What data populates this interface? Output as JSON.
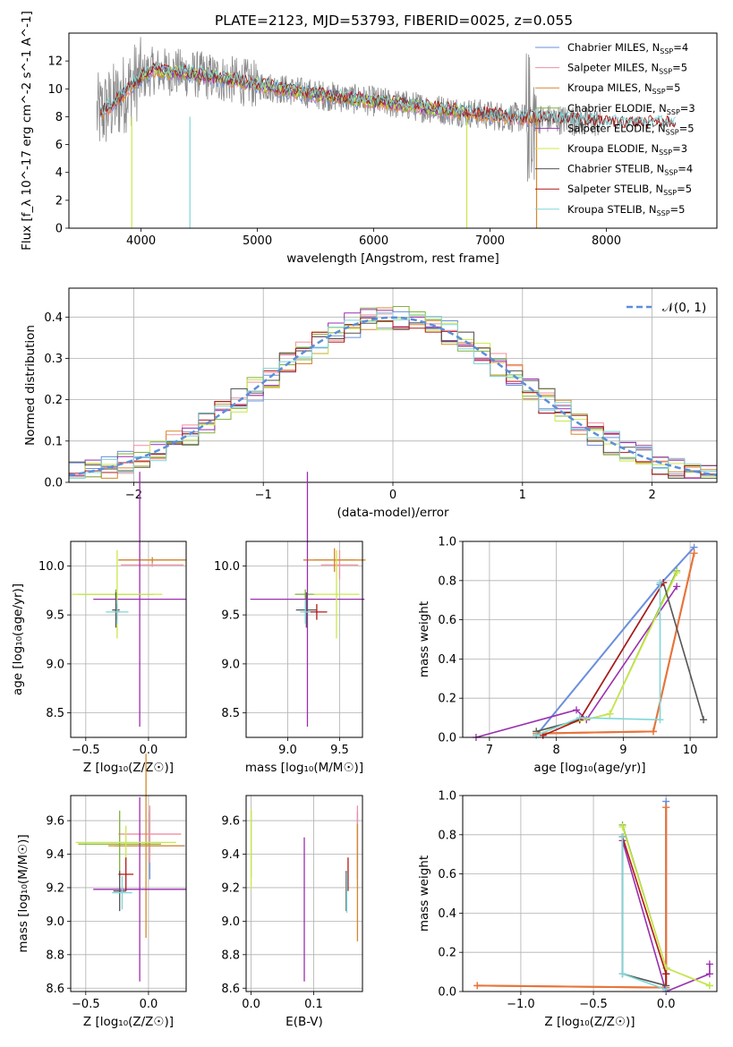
{
  "title": "PLATE=2123, MJD=53793, FIBERID=0025, z=0.055",
  "colors": {
    "chabrier_miles": "#6a8fdc",
    "salpeter_miles": "#f08fa0",
    "kroupa_miles": "#d7882a",
    "chabrier_elodie": "#7fb23a",
    "salpeter_elodie": "#9b2fb0",
    "kroupa_elodie": "#c9e84a",
    "chabrier_stelib": "#555555",
    "salpeter_stelib": "#b01818",
    "kroupa_stelib": "#7fd6d8",
    "data": "#888888",
    "normal": "#5b8fd8",
    "orange_thick": "#e8743b"
  },
  "chart_data": [
    {
      "type": "line",
      "xlabel": "wavelength [Angstrom, rest frame]",
      "ylabel": "Flux [f_λ 10^-17 erg cm^-2 s^-1 A^-1]",
      "xlim": [
        3380,
        8950
      ],
      "ylim": [
        0,
        14
      ],
      "xticks": [
        "4000",
        "5000",
        "6000",
        "7000",
        "8000"
      ],
      "yticks": [
        "0",
        "2",
        "4",
        "6",
        "8",
        "10",
        "12"
      ],
      "legend_position": "top-right",
      "continuum": {
        "x": [
          3650,
          3800,
          3950,
          4100,
          4300,
          4500,
          4800,
          5000,
          5200,
          5500,
          5800,
          6100,
          6400,
          6700,
          7000,
          7300,
          7600,
          7900,
          8100
        ],
        "y": [
          8.2,
          9.2,
          10.5,
          11.3,
          11.2,
          11.0,
          10.6,
          10.3,
          10.0,
          9.6,
          9.3,
          9.0,
          8.7,
          8.4,
          8.1,
          7.9,
          7.8,
          7.6,
          7.5
        ]
      },
      "legend": [
        {
          "label": "Chabrier MILES, N",
          "ssp": "4",
          "color_key": "chabrier_miles"
        },
        {
          "label": "Salpeter MILES, N",
          "ssp": "5",
          "color_key": "salpeter_miles"
        },
        {
          "label": "Kroupa MILES, N",
          "ssp": "5",
          "color_key": "kroupa_miles"
        },
        {
          "label": "Chabrier ELODIE, N",
          "ssp": "3",
          "color_key": "chabrier_elodie"
        },
        {
          "label": "Salpeter ELODIE, N",
          "ssp": "5",
          "color_key": "salpeter_elodie"
        },
        {
          "label": "Kroupa ELODIE, N",
          "ssp": "3",
          "color_key": "kroupa_elodie"
        },
        {
          "label": "Chabrier STELIB, N",
          "ssp": "4",
          "color_key": "chabrier_stelib"
        },
        {
          "label": "Salpeter STELIB, N",
          "ssp": "5",
          "color_key": "salpeter_stelib"
        },
        {
          "label": "Kroupa STELIB, N",
          "ssp": "5",
          "color_key": "kroupa_stelib"
        }
      ]
    },
    {
      "type": "histogram",
      "xlabel": "(data-model)/error",
      "ylabel": "Normed distribution",
      "xlim": [
        -2.5,
        2.5
      ],
      "ylim": [
        0,
        0.47
      ],
      "xticks": [
        "−2",
        "−1",
        "0",
        "1",
        "2"
      ],
      "yticks": [
        "0.0",
        "0.1",
        "0.2",
        "0.3",
        "0.4"
      ],
      "legend": [
        {
          "label": "𝒩(0, 1)",
          "style": "dashed",
          "color_key": "normal"
        }
      ]
    },
    {
      "type": "scatter",
      "xlabel": "Z [log₁₀(Z/Z☉)]",
      "ylabel": "age  [log₁₀(age/yr)]",
      "xlim": [
        -0.62,
        0.3
      ],
      "ylim": [
        8.25,
        10.25
      ],
      "xticks": [
        "−0.5",
        "0.0"
      ],
      "yticks": [
        "8.5",
        "9.0",
        "9.5",
        "10.0"
      ],
      "points": [
        {
          "x": 0.03,
          "y": 10.06,
          "xerr": 0.27,
          "yerr": 0.02,
          "color_key": "chabrier_miles"
        },
        {
          "x": 0.03,
          "y": 10.01,
          "xerr": 0.25,
          "yerr": 0.02,
          "color_key": "salpeter_miles"
        },
        {
          "x": 0.03,
          "y": 10.06,
          "xerr": 0.27,
          "yerr": 0.03,
          "color_key": "kroupa_miles"
        },
        {
          "x": -0.26,
          "y": 9.71,
          "xerr": 0.3,
          "yerr": 0.05,
          "color_key": "chabrier_elodie"
        },
        {
          "x": -0.07,
          "y": 9.66,
          "xerr": 0.37,
          "yerr": 1.3,
          "color_key": "salpeter_elodie"
        },
        {
          "x": -0.25,
          "y": 9.71,
          "xerr": 0.36,
          "yerr": 0.45,
          "color_key": "kroupa_elodie"
        },
        {
          "x": -0.26,
          "y": 9.55,
          "xerr": 0.03,
          "yerr": 0.18,
          "color_key": "chabrier_stelib"
        },
        {
          "x": -0.25,
          "y": 9.53,
          "xerr": 0.02,
          "yerr": 0.08,
          "color_key": "salpeter_stelib"
        },
        {
          "x": -0.25,
          "y": 9.53,
          "xerr": 0.09,
          "yerr": 0.12,
          "color_key": "kroupa_stelib"
        }
      ]
    },
    {
      "type": "scatter",
      "xlabel": "mass [log₁₀(M/M☉)]",
      "xlim": [
        8.6,
        9.72
      ],
      "ylim": [
        8.25,
        10.25
      ],
      "xticks": [
        "9.0",
        "9.5"
      ],
      "yticks": [
        "8.5",
        "9.0",
        "9.5",
        "10.0"
      ],
      "points": [
        {
          "x": 9.45,
          "y": 10.06,
          "xerr": 0.2,
          "yerr": 0.02,
          "color_key": "chabrier_miles"
        },
        {
          "x": 9.5,
          "y": 10.01,
          "xerr": 0.18,
          "yerr": 0.15,
          "color_key": "salpeter_miles"
        },
        {
          "x": 9.45,
          "y": 10.06,
          "xerr": 0.3,
          "yerr": 0.12,
          "color_key": "kroupa_miles"
        },
        {
          "x": 9.17,
          "y": 9.71,
          "xerr": 0.1,
          "yerr": 0.05,
          "color_key": "chabrier_elodie"
        },
        {
          "x": 9.19,
          "y": 9.66,
          "xerr": 0.55,
          "yerr": 1.3,
          "color_key": "salpeter_elodie"
        },
        {
          "x": 9.47,
          "y": 9.71,
          "xerr": 0.22,
          "yerr": 0.45,
          "color_key": "kroupa_elodie"
        },
        {
          "x": 9.18,
          "y": 9.55,
          "xerr": 0.1,
          "yerr": 0.18,
          "color_key": "chabrier_stelib"
        },
        {
          "x": 9.28,
          "y": 9.53,
          "xerr": 0.1,
          "yerr": 0.08,
          "color_key": "salpeter_stelib"
        },
        {
          "x": 9.17,
          "y": 9.53,
          "xerr": 0.05,
          "yerr": 0.12,
          "color_key": "kroupa_stelib"
        }
      ]
    },
    {
      "type": "line",
      "xlabel": "age  [log₁₀(age/yr)]",
      "ylabel": "mass weight",
      "xlim": [
        6.6,
        10.4
      ],
      "ylim": [
        0,
        1
      ],
      "xticks": [
        "7",
        "8",
        "9",
        "10"
      ],
      "yticks": [
        "0.0",
        "0.2",
        "0.4",
        "0.6",
        "0.8",
        "1.0"
      ],
      "series": [
        {
          "color_key": "chabrier_miles",
          "x": [
            7.7,
            9.55,
            10.06
          ],
          "y": [
            0.01,
            0.78,
            0.97
          ]
        },
        {
          "color_key": "kroupa_miles",
          "x": [
            7.7,
            9.45,
            10.06
          ],
          "y": [
            0.02,
            0.03,
            0.94
          ]
        },
        {
          "color_key": "salpeter_miles",
          "x": [
            7.7,
            9.45,
            10.06
          ],
          "y": [
            0.02,
            0.03,
            0.94
          ]
        },
        {
          "color_key": "chabrier_elodie",
          "x": [
            7.7,
            8.8,
            9.8
          ],
          "y": [
            0.03,
            0.12,
            0.85
          ]
        },
        {
          "color_key": "salpeter_elodie",
          "x": [
            6.8,
            8.3,
            8.45,
            9.8
          ],
          "y": [
            0.0,
            0.14,
            0.09,
            0.77
          ]
        },
        {
          "color_key": "kroupa_elodie",
          "x": [
            7.7,
            8.8,
            9.8
          ],
          "y": [
            0.03,
            0.12,
            0.84
          ]
        },
        {
          "color_key": "chabrier_stelib",
          "x": [
            7.7,
            8.35,
            9.6,
            10.2
          ],
          "y": [
            0.03,
            0.09,
            0.79,
            0.09
          ]
        },
        {
          "color_key": "salpeter_stelib",
          "x": [
            7.8,
            8.35,
            9.6
          ],
          "y": [
            0.01,
            0.09,
            0.79
          ]
        },
        {
          "color_key": "kroupa_stelib",
          "x": [
            7.7,
            8.35,
            9.55,
            9.55
          ],
          "y": [
            0.01,
            0.1,
            0.09,
            0.79
          ]
        }
      ]
    },
    {
      "type": "scatter",
      "xlabel": "Z [log₁₀(Z/Z☉)]",
      "ylabel": "mass [log₁₀(M/M☉)]",
      "xlim": [
        -0.62,
        0.3
      ],
      "ylim": [
        8.58,
        9.75
      ],
      "xticks": [
        "−0.5",
        "0.0"
      ],
      "yticks": [
        "8.6",
        "8.8",
        "9.0",
        "9.2",
        "9.4",
        "9.6"
      ],
      "points": [
        {
          "x": 0.01,
          "y": 9.45,
          "xerr": 0.28,
          "yerr": 0.2,
          "color_key": "chabrier_miles"
        },
        {
          "x": 0.01,
          "y": 9.52,
          "xerr": 0.25,
          "yerr": 0.17,
          "color_key": "salpeter_miles"
        },
        {
          "x": -0.02,
          "y": 9.45,
          "xerr": 0.3,
          "yerr": 0.55,
          "color_key": "kroupa_miles"
        },
        {
          "x": -0.23,
          "y": 9.46,
          "xerr": 0.33,
          "yerr": 0.2,
          "color_key": "chabrier_elodie"
        },
        {
          "x": -0.07,
          "y": 9.19,
          "xerr": 0.37,
          "yerr": 0.55,
          "color_key": "salpeter_elodie"
        },
        {
          "x": -0.18,
          "y": 9.47,
          "xerr": 0.4,
          "yerr": 0.1,
          "color_key": "kroupa_elodie"
        },
        {
          "x": -0.23,
          "y": 9.18,
          "xerr": 0.05,
          "yerr": 0.12,
          "color_key": "chabrier_stelib"
        },
        {
          "x": -0.18,
          "y": 9.28,
          "xerr": 0.06,
          "yerr": 0.1,
          "color_key": "salpeter_stelib"
        },
        {
          "x": -0.21,
          "y": 9.17,
          "xerr": 0.08,
          "yerr": 0.1,
          "color_key": "kroupa_stelib"
        }
      ]
    },
    {
      "type": "scatter",
      "xlabel": "E(B-V)",
      "xlim": [
        -0.008,
        0.178
      ],
      "ylim": [
        8.58,
        9.75
      ],
      "xticks": [
        "0.0",
        "0.1"
      ],
      "yticks": [
        "8.6",
        "8.8",
        "9.0",
        "9.2",
        "9.4",
        "9.6"
      ],
      "points": [
        {
          "x": 0.17,
          "y": 9.45,
          "yerr": 0.2,
          "color_key": "chabrier_miles"
        },
        {
          "x": 0.17,
          "y": 9.52,
          "yerr": 0.17,
          "color_key": "salpeter_miles"
        },
        {
          "x": 0.17,
          "y": 9.23,
          "yerr": 0.35,
          "color_key": "kroupa_miles"
        },
        {
          "x": 0.0,
          "y": 9.46,
          "yerr": 0.2,
          "color_key": "chabrier_elodie"
        },
        {
          "x": 0.085,
          "y": 9.07,
          "yerr": 0.43,
          "color_key": "salpeter_elodie"
        },
        {
          "x": 0.0,
          "y": 9.43,
          "yerr": 0.24,
          "color_key": "kroupa_elodie"
        },
        {
          "x": 0.152,
          "y": 9.18,
          "yerr": 0.12,
          "color_key": "chabrier_stelib"
        },
        {
          "x": 0.155,
          "y": 9.28,
          "yerr": 0.1,
          "color_key": "salpeter_stelib"
        },
        {
          "x": 0.153,
          "y": 9.17,
          "yerr": 0.12,
          "color_key": "kroupa_stelib"
        }
      ]
    },
    {
      "type": "line",
      "xlabel": "Z [log₁₀(Z/Z☉)]",
      "ylabel": "mass weight",
      "xlim": [
        -1.4,
        0.35
      ],
      "ylim": [
        0,
        1
      ],
      "xticks": [
        "−1.0",
        "−0.5",
        "0.0"
      ],
      "yticks": [
        "0.0",
        "0.2",
        "0.4",
        "0.6",
        "0.8",
        "1.0"
      ],
      "series": [
        {
          "color_key": "chabrier_miles",
          "x": [
            0.0,
            0.0,
            0.0
          ],
          "y": [
            0.02,
            0.12,
            0.97
          ]
        },
        {
          "color_key": "kroupa_miles",
          "x": [
            -1.3,
            0.0,
            0.0
          ],
          "y": [
            0.03,
            0.02,
            0.94
          ]
        },
        {
          "color_key": "salpeter_miles",
          "x": [
            -1.3,
            0.0,
            0.0
          ],
          "y": [
            0.03,
            0.02,
            0.94
          ]
        },
        {
          "color_key": "chabrier_elodie",
          "x": [
            -0.3,
            0.0,
            0.3
          ],
          "y": [
            0.85,
            0.12,
            0.03
          ]
        },
        {
          "color_key": "salpeter_elodie",
          "x": [
            -0.3,
            0.0,
            0.3,
            0.3
          ],
          "y": [
            0.77,
            0.0,
            0.09,
            0.14
          ]
        },
        {
          "color_key": "kroupa_elodie",
          "x": [
            -0.3,
            0.0,
            0.3
          ],
          "y": [
            0.84,
            0.12,
            0.03
          ]
        },
        {
          "color_key": "chabrier_stelib",
          "x": [
            -0.3,
            -0.3,
            0.0,
            0.0
          ],
          "y": [
            0.79,
            0.09,
            0.03,
            0.09
          ]
        },
        {
          "color_key": "salpeter_stelib",
          "x": [
            -0.3,
            0.0,
            0.0
          ],
          "y": [
            0.79,
            0.09,
            0.01
          ]
        },
        {
          "color_key": "kroupa_stelib",
          "x": [
            -0.3,
            -0.3,
            0.0
          ],
          "y": [
            0.79,
            0.09,
            0.01
          ]
        }
      ]
    }
  ]
}
